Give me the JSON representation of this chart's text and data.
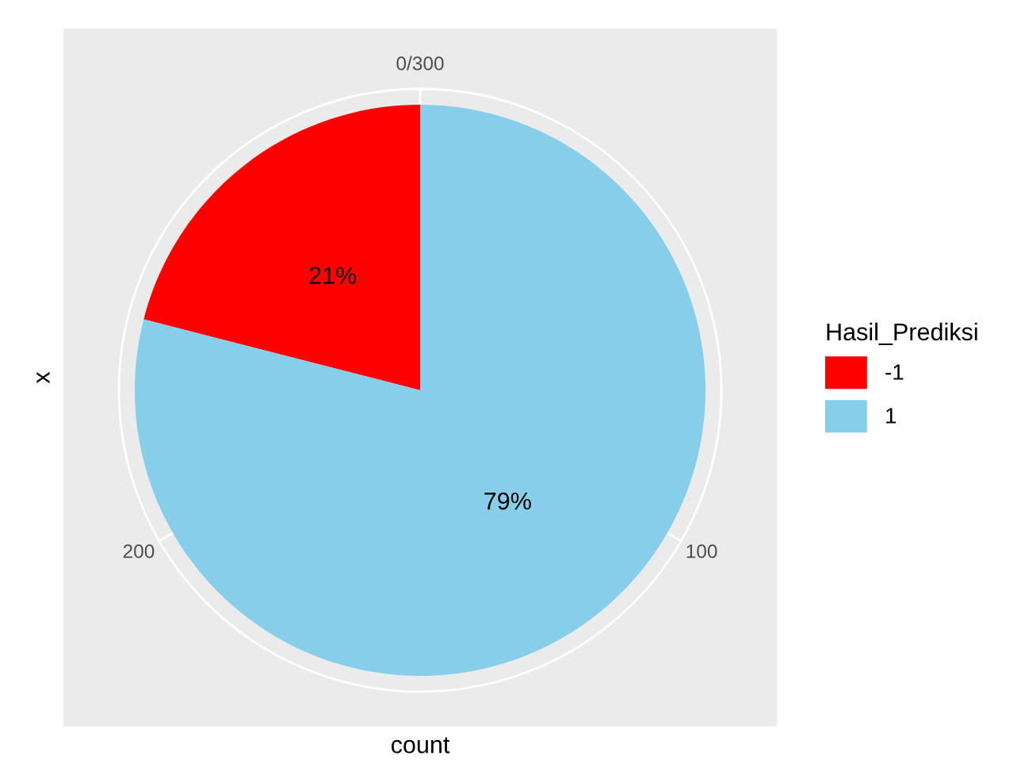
{
  "chart_data": {
    "type": "pie",
    "categories": [
      "-1",
      "1"
    ],
    "values": [
      21,
      79
    ],
    "colors": [
      "#ff0000",
      "#87ceeb"
    ],
    "value_labels": [
      "21%",
      "79%"
    ],
    "xlabel": "count",
    "ylabel": "x",
    "annotations": [
      "0/300",
      "100",
      "200"
    ],
    "legend_title": "Hasil_Prediksi",
    "legend": "right",
    "grid": true
  }
}
